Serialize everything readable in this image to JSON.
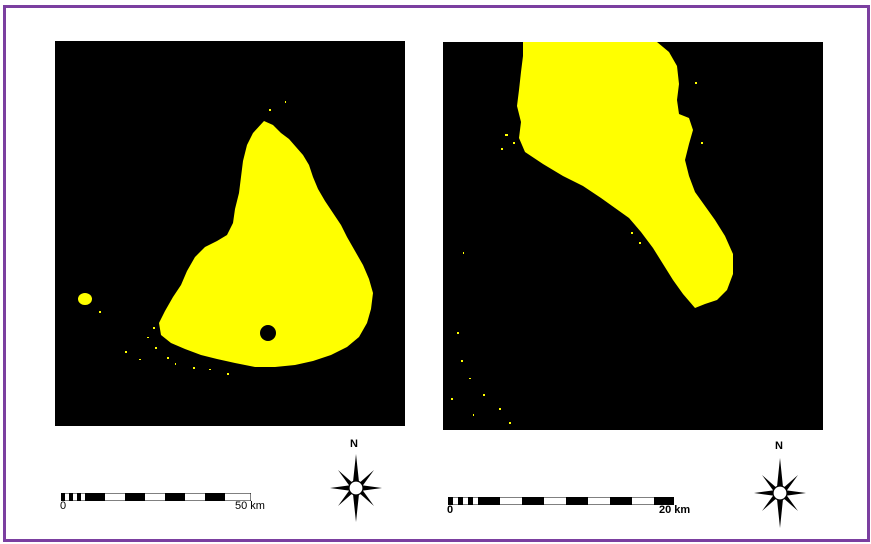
{
  "frame_color": "#7b3fa0",
  "colors": {
    "land": "#000000",
    "water": "#ffff00"
  },
  "left_map": {
    "scale": {
      "start_label": "0",
      "end_label": "50 km"
    },
    "north_label": "N"
  },
  "right_map": {
    "scale": {
      "start_label": "0",
      "end_label": "20 km"
    },
    "north_label": "N"
  }
}
